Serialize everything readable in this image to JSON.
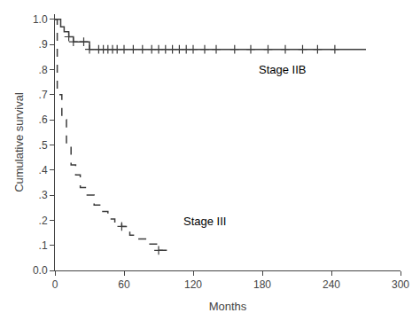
{
  "chart_data": {
    "type": "line",
    "xlabel": "Months",
    "ylabel": "Cumulative survival",
    "xlim": [
      0,
      300
    ],
    "ylim": [
      0.0,
      1.02
    ],
    "xticks": [
      0,
      60,
      120,
      180,
      240,
      300
    ],
    "yticks": [
      {
        "value": 0.0,
        "label": "0.0"
      },
      {
        "value": 0.1,
        "label": ".1"
      },
      {
        "value": 0.2,
        "label": ".2"
      },
      {
        "value": 0.3,
        "label": ".3"
      },
      {
        "value": 0.4,
        "label": ".4"
      },
      {
        "value": 0.5,
        "label": ".5"
      },
      {
        "value": 0.6,
        "label": ".6"
      },
      {
        "value": 0.7,
        "label": ".7"
      },
      {
        "value": 0.8,
        "label": ".8"
      },
      {
        "value": 0.9,
        "label": ".9"
      },
      {
        "value": 1.0,
        "label": "1.0"
      }
    ],
    "grid": false,
    "series": [
      {
        "type": "step",
        "line_style": "solid",
        "color": "#3c3c3c",
        "x": [
          0,
          5,
          8,
          12,
          16,
          20,
          25,
          30,
          38,
          270
        ],
        "values": [
          1.0,
          0.97,
          0.95,
          0.93,
          0.91,
          0.91,
          0.91,
          0.88,
          0.88,
          0.88
        ]
      },
      {
        "type": "scatter",
        "marker": "plus",
        "color": "#3c3c3c",
        "x": [
          12,
          16,
          25,
          30,
          38,
          42,
          46,
          50,
          54,
          60,
          68,
          76,
          84,
          90,
          96,
          102,
          108,
          114,
          120,
          130,
          140,
          156,
          170,
          185,
          200,
          215,
          228,
          243
        ],
        "values": [
          0.93,
          0.91,
          0.91,
          0.88,
          0.88,
          0.88,
          0.88,
          0.88,
          0.88,
          0.88,
          0.88,
          0.88,
          0.88,
          0.88,
          0.88,
          0.88,
          0.88,
          0.88,
          0.88,
          0.88,
          0.88,
          0.88,
          0.88,
          0.88,
          0.88,
          0.88,
          0.88,
          0.88
        ]
      },
      {
        "type": "line",
        "line_style": "dashed",
        "color": "#3c3c3c",
        "x": [
          0,
          2,
          2,
          6,
          6,
          10,
          10,
          14,
          14,
          18,
          18,
          22,
          22,
          28,
          28,
          34,
          34,
          40,
          40,
          46,
          46,
          52,
          52,
          58,
          58,
          65,
          65,
          72,
          72,
          80,
          80,
          90,
          90,
          100
        ],
        "values": [
          1.0,
          1.0,
          0.7,
          0.7,
          0.6,
          0.6,
          0.5,
          0.5,
          0.42,
          0.42,
          0.38,
          0.38,
          0.33,
          0.33,
          0.3,
          0.3,
          0.26,
          0.26,
          0.235,
          0.235,
          0.205,
          0.205,
          0.19,
          0.19,
          0.175,
          0.175,
          0.14,
          0.14,
          0.125,
          0.125,
          0.105,
          0.105,
          0.08,
          0.08
        ]
      },
      {
        "type": "scatter",
        "marker": "plus",
        "color": "#3c3c3c",
        "x": [
          58,
          90
        ],
        "values": [
          0.175,
          0.08
        ]
      }
    ],
    "annotations": [
      {
        "text": "Stage IIB",
        "x": 175,
        "y": 0.8
      },
      {
        "text": "Stage III",
        "x": 110,
        "y": 0.195
      }
    ]
  }
}
